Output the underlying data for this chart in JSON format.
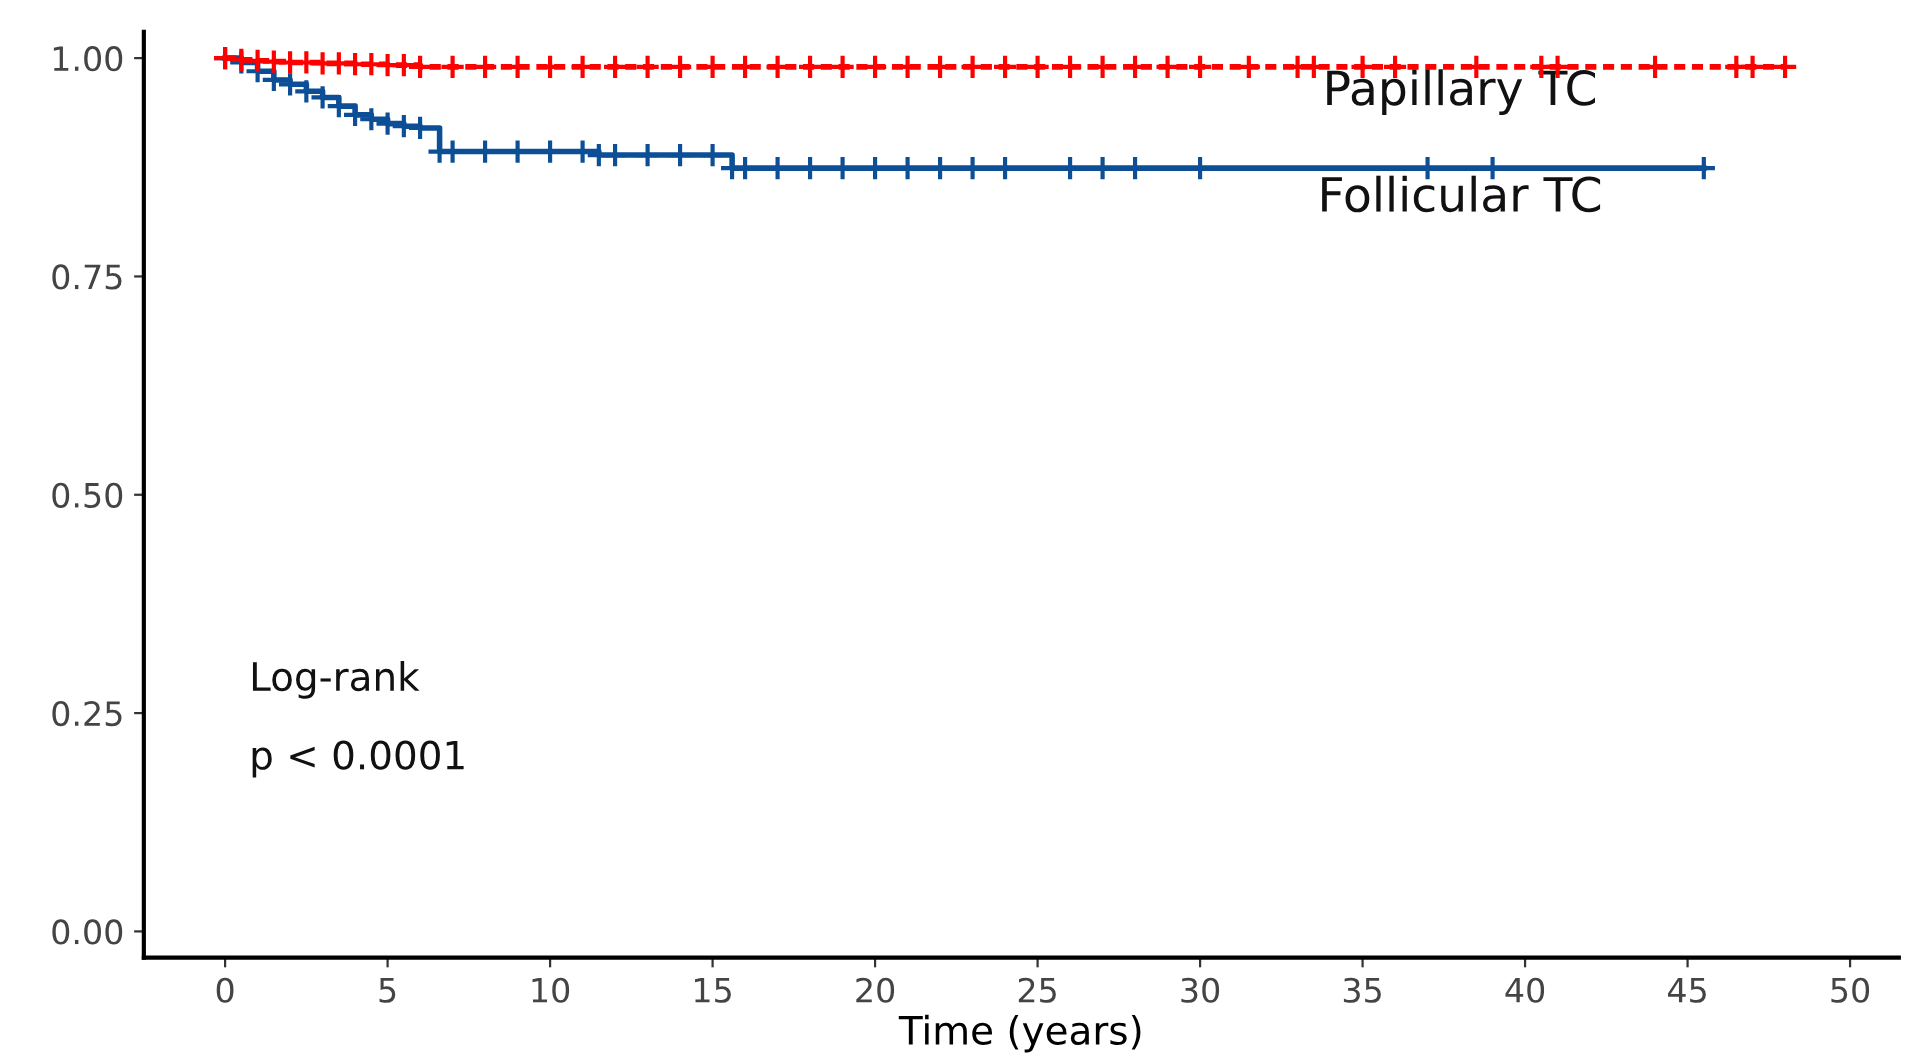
{
  "chart_data": {
    "type": "step",
    "xlabel": "Time (years)",
    "xlim": [
      -2.5,
      51.5
    ],
    "ylim": [
      -0.03,
      1.03
    ],
    "xticks": [
      0,
      5,
      10,
      15,
      20,
      25,
      30,
      35,
      40,
      45,
      50
    ],
    "yticks": [
      {
        "value": 0,
        "label": "0.00"
      },
      {
        "value": 0.25,
        "label": "0.25"
      },
      {
        "value": 0.5,
        "label": "0.50"
      },
      {
        "value": 0.75,
        "label": "0.75"
      },
      {
        "value": 1,
        "label": "1.00"
      }
    ],
    "grid": false,
    "marker": "cross",
    "series": [
      {
        "color": "#ff0000",
        "line_style": "dashed",
        "x": [
          0,
          0.5,
          1,
          1.5,
          2,
          2.5,
          3,
          3.5,
          4,
          4.5,
          5,
          5.5,
          6,
          7,
          8,
          9,
          10,
          11,
          12,
          13,
          14,
          15,
          16,
          17,
          18,
          19,
          20,
          21,
          22,
          23,
          24,
          25,
          26,
          27,
          28,
          29,
          30,
          31.5,
          33,
          33.5,
          35,
          36,
          38.5,
          40.5,
          41,
          44,
          46.5,
          47,
          48
        ],
        "values": [
          1,
          0.998,
          0.997,
          0.996,
          0.995,
          0.995,
          0.994,
          0.994,
          0.993,
          0.993,
          0.992,
          0.992,
          0.99,
          0.99,
          0.99,
          0.99,
          0.99,
          0.99,
          0.99,
          0.99,
          0.99,
          0.99,
          0.99,
          0.99,
          0.99,
          0.99,
          0.99,
          0.99,
          0.99,
          0.99,
          0.99,
          0.99,
          0.99,
          0.99,
          0.99,
          0.99,
          0.99,
          0.99,
          0.99,
          0.99,
          0.99,
          0.99,
          0.99,
          0.99,
          0.99,
          0.99,
          0.99,
          0.99,
          0.99
        ]
      },
      {
        "color": "#0c4f97",
        "line_style": "solid",
        "x": [
          0,
          0.5,
          1,
          1.5,
          2,
          2.5,
          3,
          3.5,
          4,
          4.5,
          5,
          5.5,
          6,
          6.6,
          7,
          8,
          9,
          10,
          11,
          11.5,
          12,
          13,
          14,
          15,
          15.6,
          16,
          17,
          18,
          19,
          20,
          21,
          22,
          23,
          24,
          26,
          27,
          28,
          30,
          37,
          39,
          45.5
        ],
        "values": [
          1,
          0.995,
          0.985,
          0.975,
          0.97,
          0.962,
          0.955,
          0.945,
          0.935,
          0.93,
          0.925,
          0.922,
          0.92,
          0.893,
          0.893,
          0.893,
          0.893,
          0.893,
          0.893,
          0.889,
          0.889,
          0.889,
          0.889,
          0.889,
          0.874,
          0.874,
          0.874,
          0.874,
          0.874,
          0.874,
          0.874,
          0.874,
          0.874,
          0.874,
          0.874,
          0.874,
          0.874,
          0.874,
          0.874,
          0.874,
          0.874
        ]
      }
    ],
    "annotations": [
      "Papillary TC",
      "Follicular TC",
      "Log-rank",
      "p < 0.0001"
    ]
  }
}
